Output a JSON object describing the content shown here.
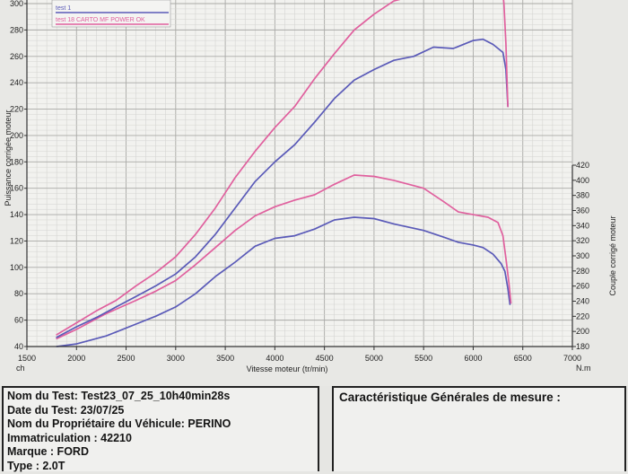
{
  "chart_data": {
    "type": "line",
    "x_axis": {
      "min": 1500,
      "max": 7000,
      "ticks": [
        1500,
        2000,
        2500,
        3000,
        3500,
        4000,
        4500,
        5000,
        5500,
        6000,
        6500,
        7000
      ],
      "label": "Vitesse moteur (tr/min)",
      "unit_left": "ch",
      "unit_right": "N.m"
    },
    "y_left": {
      "min": 40,
      "max": 300,
      "ticks": [
        40,
        60,
        80,
        100,
        120,
        140,
        160,
        180,
        200,
        220,
        240,
        260,
        280,
        300
      ],
      "label": "Puissance corrigée moteur"
    },
    "y_right": {
      "min": 180,
      "max": 420,
      "ticks": [
        180,
        200,
        220,
        240,
        260,
        280,
        300,
        320,
        340,
        360,
        380,
        400,
        420
      ],
      "label": "Couple corrigé moteur"
    },
    "grid": true,
    "legend_position": "top-left",
    "series": [
      {
        "name": "test 1",
        "color": "#5a5ab8",
        "axis": "left",
        "quantity": "power",
        "points": [
          [
            1800,
            40
          ],
          [
            2000,
            42
          ],
          [
            2300,
            48
          ],
          [
            2600,
            57
          ],
          [
            2800,
            63
          ],
          [
            3000,
            70
          ],
          [
            3200,
            80
          ],
          [
            3400,
            93
          ],
          [
            3600,
            104
          ],
          [
            3800,
            116
          ],
          [
            4000,
            122
          ],
          [
            4200,
            124
          ],
          [
            4400,
            129
          ],
          [
            4600,
            136
          ],
          [
            4800,
            138
          ],
          [
            5000,
            137
          ],
          [
            5200,
            133
          ],
          [
            5500,
            128
          ],
          [
            5700,
            123
          ],
          [
            5850,
            119
          ],
          [
            6000,
            117
          ],
          [
            6100,
            115
          ],
          [
            6200,
            110
          ],
          [
            6280,
            103
          ],
          [
            6320,
            97
          ],
          [
            6350,
            84
          ],
          [
            6370,
            72
          ]
        ]
      },
      {
        "name": "test 18 CARTO MF POWER OK",
        "color": "#e0609e",
        "axis": "left",
        "quantity": "power",
        "points": [
          [
            1800,
            46
          ],
          [
            2000,
            53
          ],
          [
            2300,
            65
          ],
          [
            2600,
            75
          ],
          [
            2800,
            82
          ],
          [
            3000,
            90
          ],
          [
            3200,
            102
          ],
          [
            3400,
            115
          ],
          [
            3600,
            128
          ],
          [
            3800,
            139
          ],
          [
            4000,
            146
          ],
          [
            4200,
            151
          ],
          [
            4400,
            155
          ],
          [
            4600,
            163
          ],
          [
            4800,
            170
          ],
          [
            5000,
            169
          ],
          [
            5200,
            166
          ],
          [
            5500,
            160
          ],
          [
            5700,
            150
          ],
          [
            5850,
            142
          ],
          [
            6000,
            140
          ],
          [
            6150,
            138
          ],
          [
            6250,
            134
          ],
          [
            6300,
            124
          ],
          [
            6330,
            107
          ],
          [
            6360,
            88
          ],
          [
            6380,
            73
          ]
        ]
      },
      {
        "name": "test 1",
        "color": "#5a5ab8",
        "axis": "left",
        "quantity": "torque",
        "points": [
          [
            1800,
            47
          ],
          [
            2000,
            55
          ],
          [
            2200,
            62
          ],
          [
            2400,
            70
          ],
          [
            2600,
            78
          ],
          [
            2800,
            86
          ],
          [
            3000,
            95
          ],
          [
            3200,
            108
          ],
          [
            3400,
            125
          ],
          [
            3600,
            145
          ],
          [
            3800,
            165
          ],
          [
            4000,
            180
          ],
          [
            4200,
            193
          ],
          [
            4400,
            210
          ],
          [
            4600,
            228
          ],
          [
            4800,
            242
          ],
          [
            5000,
            250
          ],
          [
            5200,
            257
          ],
          [
            5400,
            260
          ],
          [
            5600,
            267
          ],
          [
            5800,
            266
          ],
          [
            6000,
            272
          ],
          [
            6100,
            273
          ],
          [
            6200,
            269
          ],
          [
            6300,
            263
          ],
          [
            6330,
            250
          ],
          [
            6350,
            222
          ]
        ]
      },
      {
        "name": "test 18 CARTO MF POWER OK",
        "color": "#e0609e",
        "axis": "left",
        "quantity": "torque",
        "points": [
          [
            1800,
            49
          ],
          [
            2000,
            58
          ],
          [
            2200,
            67
          ],
          [
            2400,
            75
          ],
          [
            2600,
            86
          ],
          [
            2800,
            96
          ],
          [
            3000,
            108
          ],
          [
            3200,
            125
          ],
          [
            3400,
            145
          ],
          [
            3600,
            168
          ],
          [
            3800,
            188
          ],
          [
            4000,
            206
          ],
          [
            4200,
            222
          ],
          [
            4400,
            243
          ],
          [
            4600,
            262
          ],
          [
            4800,
            280
          ],
          [
            5000,
            292
          ],
          [
            5200,
            302
          ],
          [
            5400,
            306
          ]
        ]
      },
      {
        "name": "test 18 CARTO MF POWER OK",
        "color": "#e0609e",
        "axis": "left",
        "quantity": "torque-end",
        "points": [
          [
            6290,
            315
          ],
          [
            6310,
            300
          ],
          [
            6330,
            270
          ],
          [
            6350,
            222
          ]
        ]
      }
    ]
  },
  "legend": [
    {
      "label": "test 1",
      "color": "#5a5ab8"
    },
    {
      "label": "test 18 CARTO MF POWER OK",
      "color": "#e0609e"
    }
  ],
  "info_left": {
    "test_name": "Nom du Test: Test23_07_25_10h40min28s",
    "test_date": "Date du Test: 23/07/25",
    "owner": "Nom du Propriétaire du Véhicule: PERINO",
    "registration": "Immatriculation  : 42210",
    "brand": "Marque  : FORD",
    "type": "Type  : 2.0T"
  },
  "info_right": {
    "title": "Caractéristique Générales de mesure :"
  }
}
